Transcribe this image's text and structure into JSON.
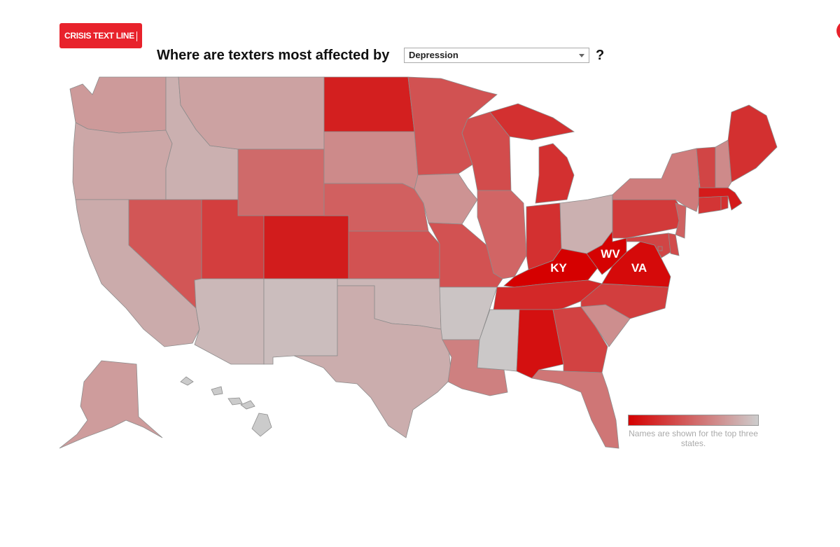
{
  "header": {
    "logo_text": "CRISIS TEXT LINE",
    "question_prefix": "Where are texters most affected by",
    "question_suffix": "?"
  },
  "selector": {
    "selected": "Depression"
  },
  "legend": {
    "color_high": "#d50000",
    "color_low": "#cdcdcd",
    "note": "Names are shown for the top three states."
  },
  "map_data": {
    "type": "choropleth",
    "region": "United States",
    "top_states": [
      "KY",
      "WV",
      "VA"
    ],
    "states": {
      "WA": "#cd9a9a",
      "OR": "#cca7a7",
      "CA": "#cbabab",
      "ID": "#cbb0b0",
      "MT": "#cca2a2",
      "WY": "#cf6a6a",
      "NV": "#d25656",
      "UT": "#d33e3e",
      "AZ": "#cbb8b8",
      "CO": "#d21c1c",
      "NM": "#cbbdbd",
      "ND": "#d31f1f",
      "SD": "#cd8a8a",
      "NE": "#d16060",
      "KS": "#d25252",
      "OK": "#cbb6b6",
      "TX": "#cbadad",
      "MN": "#d15252",
      "IA": "#cd9393",
      "MO": "#d25252",
      "AR": "#cbc4c4",
      "LA": "#ce8080",
      "WI": "#d24c4c",
      "IL": "#d16565",
      "MI": "#d33030",
      "IN": "#d33030",
      "OH": "#cbb0b0",
      "KY": "#d50000",
      "TN": "#d32828",
      "MS": "#cbc8c8",
      "AL": "#d41010",
      "GA": "#d24242",
      "FL": "#cf7676",
      "SC": "#cd8e8e",
      "NC": "#d23e3e",
      "VA": "#d50a0a",
      "WV": "#d50202",
      "PA": "#d23a3a",
      "NY": "#cf7c7c",
      "NJ": "#cf6262",
      "DE": "#d14c4c",
      "MD": "#d04545",
      "CT": "#d33535",
      "RI": "#d33030",
      "MA": "#d41b1b",
      "VT": "#d14545",
      "NH": "#ce8a8a",
      "ME": "#d33030",
      "AK": "#ce9c9c",
      "HI": "#cbcbcb",
      "DC": "#d24545"
    }
  }
}
